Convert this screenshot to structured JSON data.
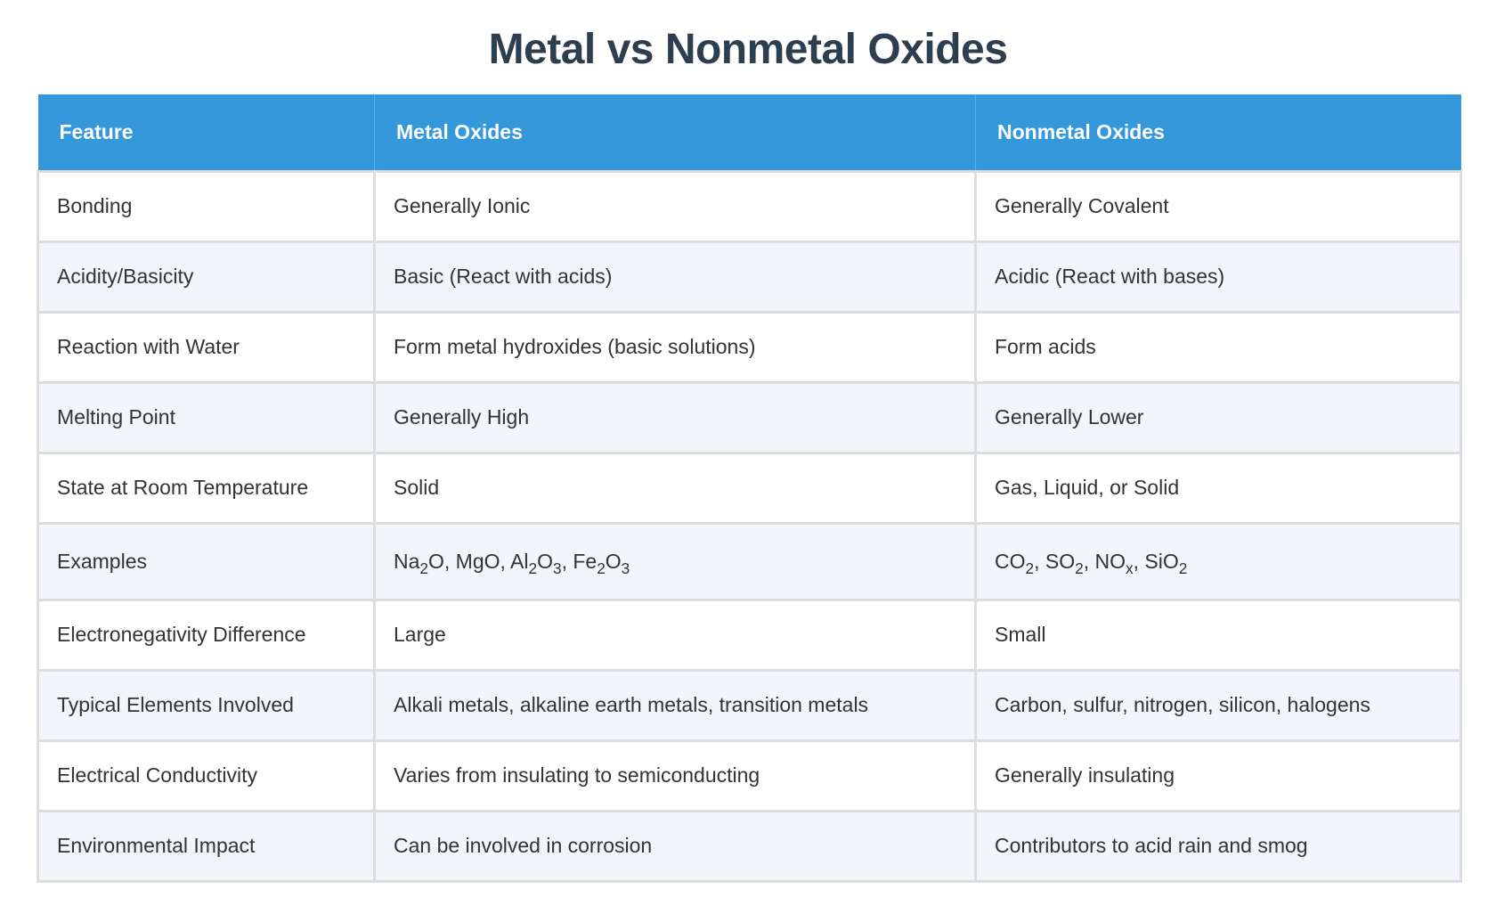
{
  "title": "Metal vs Nonmetal Oxides",
  "colors": {
    "header_bg": "#3498db",
    "title": "#2c3e50",
    "alt_row": "#f2f5f9",
    "border": "#dddddd"
  },
  "table": {
    "headers": [
      "Feature",
      "Metal Oxides",
      "Nonmetal Oxides"
    ],
    "rows": [
      {
        "feature": "Bonding",
        "metal": "Generally Ionic",
        "nonmetal": "Generally Covalent"
      },
      {
        "feature": "Acidity/Basicity",
        "metal": "Basic (React with acids)",
        "nonmetal": "Acidic (React with bases)"
      },
      {
        "feature": "Reaction with Water",
        "metal": "Form metal hydroxides (basic solutions)",
        "nonmetal": "Form acids"
      },
      {
        "feature": "Melting Point",
        "metal": "Generally High",
        "nonmetal": "Generally Lower"
      },
      {
        "feature": "State at Room Temperature",
        "metal": "Solid",
        "nonmetal": "Gas, Liquid, or Solid"
      },
      {
        "feature": "Examples",
        "metal": "Na2O, MgO, Al2O3, Fe2O3",
        "nonmetal": "CO2, SO2, NOx, SiO2",
        "metal_formula_parts": [
          [
            [
              "Na",
              ""
            ],
            [
              "2",
              "sub"
            ],
            [
              "O, MgO, Al",
              ""
            ],
            [
              "2",
              "sub"
            ],
            [
              "O",
              ""
            ],
            [
              "3",
              "sub"
            ],
            [
              ", Fe",
              ""
            ],
            [
              "2",
              "sub"
            ],
            [
              "O",
              ""
            ],
            [
              "3",
              "sub"
            ]
          ]
        ],
        "nonmetal_formula_parts": [
          [
            [
              "CO",
              ""
            ],
            [
              "2",
              "sub"
            ],
            [
              ", SO",
              ""
            ],
            [
              "2",
              "sub"
            ],
            [
              ", NO",
              ""
            ],
            [
              "x",
              "sub"
            ],
            [
              ", SiO",
              ""
            ],
            [
              "2",
              "sub"
            ]
          ]
        ]
      },
      {
        "feature": "Electronegativity Difference",
        "metal": "Large",
        "nonmetal": "Small"
      },
      {
        "feature": "Typical Elements Involved",
        "metal": "Alkali metals, alkaline earth metals, transition metals",
        "nonmetal": "Carbon, sulfur, nitrogen, silicon, halogens"
      },
      {
        "feature": "Electrical Conductivity",
        "metal": "Varies from insulating to semiconducting",
        "nonmetal": "Generally insulating"
      },
      {
        "feature": "Environmental Impact",
        "metal": "Can be involved in corrosion",
        "nonmetal": "Contributors to acid rain and smog"
      }
    ]
  }
}
